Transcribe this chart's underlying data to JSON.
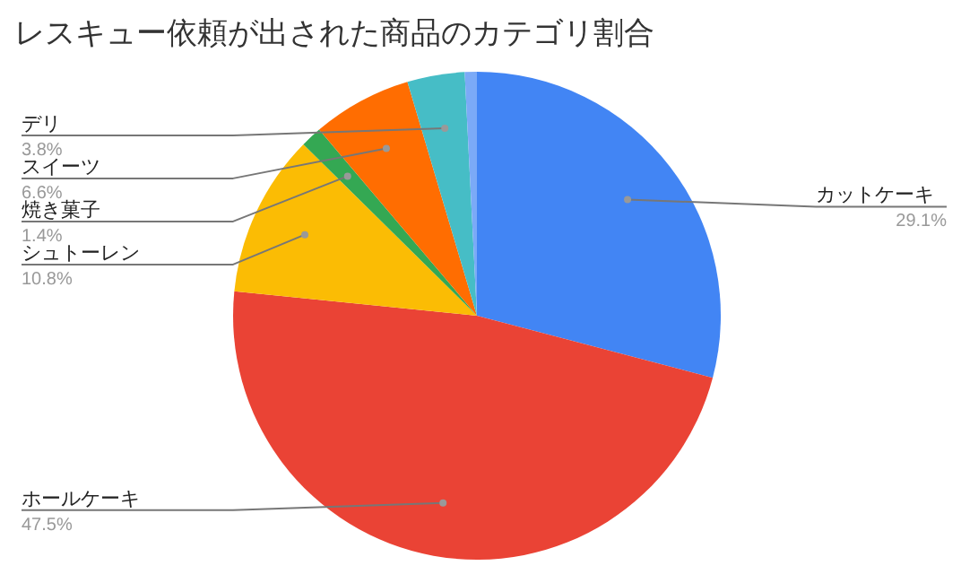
{
  "chart_data": {
    "type": "pie",
    "title": "レスキュー依頼が出された商品のカテゴリ割合",
    "categories": [
      "カットケーキ",
      "ホールケーキ",
      "シュトーレン",
      "焼き菓子",
      "スイーツ",
      "デリ",
      null
    ],
    "values": [
      29.1,
      47.5,
      10.8,
      1.4,
      6.6,
      3.8,
      0.8
    ],
    "colors": [
      "#4285f4",
      "#ea4335",
      "#fbbc04",
      "#34a853",
      "#ff6d01",
      "#46bdc6",
      "#7baaf7"
    ],
    "value_labels": [
      "29.1%",
      "47.5%",
      "10.8%",
      "1.4%",
      "6.6%",
      "3.8%",
      null
    ]
  }
}
